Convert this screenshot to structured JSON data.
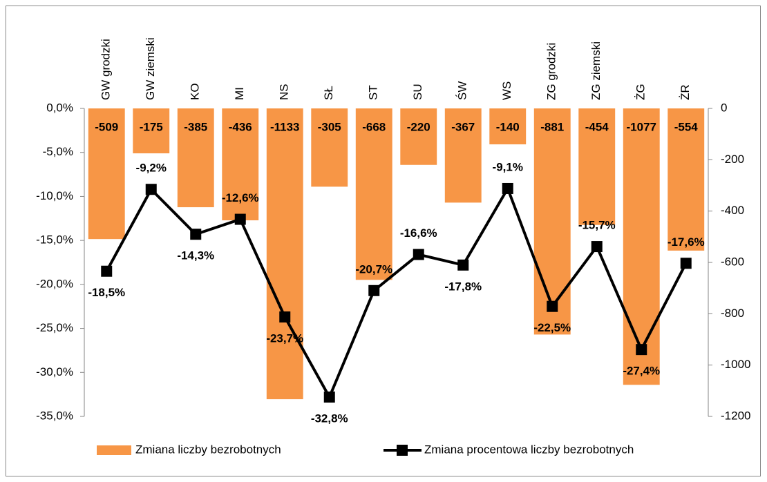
{
  "chart_data": {
    "type": "combo",
    "categories": [
      "GW grodzki",
      "GW ziemski",
      "KO",
      "MI",
      "NS",
      "SŁ",
      "ST",
      "SU",
      "ŚW",
      "WS",
      "ZG grodzki",
      "ZG ziemski",
      "ŻG",
      "ŻR"
    ],
    "series": [
      {
        "name": "Zmiana liczby bezrobotnych",
        "type": "bar",
        "axis": "y2",
        "color": "#f79646",
        "values": [
          -509,
          -175,
          -385,
          -436,
          -1133,
          -305,
          -668,
          -220,
          -367,
          -140,
          -881,
          -454,
          -1077,
          -554
        ]
      },
      {
        "name": "Zmiana procentowa liczby bezrobotnych",
        "type": "line",
        "color": "#000000",
        "values": [
          -18.5,
          -9.2,
          -14.3,
          -12.6,
          -23.7,
          -32.8,
          -20.7,
          -16.6,
          -17.8,
          -9.1,
          -22.5,
          -15.7,
          -27.4,
          -17.6
        ],
        "value_labels": [
          "-18,5%",
          "-9,2%",
          "-14,3%",
          "-12,6%",
          "-23,7%",
          "-32,8%",
          "-20,7%",
          "-16,6%",
          "-17,8%",
          "-9,1%",
          "-22,5%",
          "-15,7%",
          "-27,4%",
          "-17,6%"
        ]
      }
    ],
    "ylim": [
      -35,
      0
    ],
    "yticks": [
      {
        "value": 0,
        "label": "0,0%"
      },
      {
        "value": -5,
        "label": "-5,0%"
      },
      {
        "value": -10,
        "label": "-10,0%"
      },
      {
        "value": -15,
        "label": "-15,0%"
      },
      {
        "value": -20,
        "label": "-20,0%"
      },
      {
        "value": -25,
        "label": "-25,0%"
      },
      {
        "value": -30,
        "label": "-30,0%"
      },
      {
        "value": -35,
        "label": "-35,0%"
      }
    ],
    "y2lim": [
      -1200,
      0
    ],
    "y2ticks": [
      0,
      -200,
      -400,
      -600,
      -800,
      -1000,
      -1200
    ],
    "legend": "bottom"
  }
}
